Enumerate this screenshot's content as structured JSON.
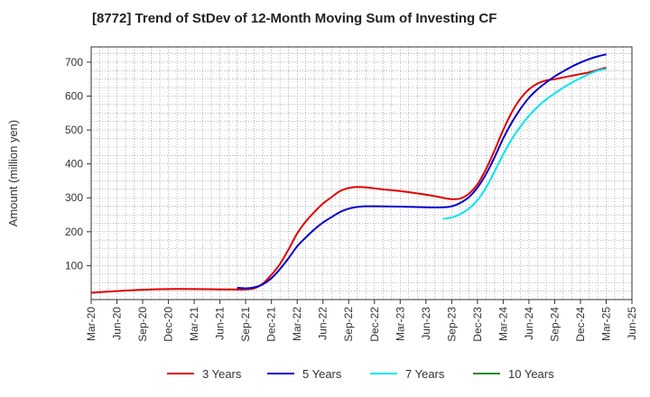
{
  "chart_data": {
    "type": "line",
    "title": "[8772]  Trend of StDev of 12-Month Moving Sum of Investing CF",
    "xlabel": "",
    "ylabel": "Amount (million yen)",
    "ylim": [
      0,
      745
    ],
    "yticks": [
      100,
      200,
      300,
      400,
      500,
      600,
      700
    ],
    "x_start": "2020-03",
    "x_end": "2025-06",
    "xticks": [
      "Mar-20",
      "Jun-20",
      "Sep-20",
      "Dec-20",
      "Mar-21",
      "Jun-21",
      "Sep-21",
      "Dec-21",
      "Mar-22",
      "Jun-22",
      "Sep-22",
      "Dec-22",
      "Mar-23",
      "Jun-23",
      "Sep-23",
      "Dec-23",
      "Mar-24",
      "Jun-24",
      "Sep-24",
      "Dec-24",
      "Mar-25",
      "Jun-25"
    ],
    "grid": true,
    "legend_position": "bottom",
    "series": [
      {
        "name": "3 Years",
        "color": "#e00000",
        "points": [
          [
            "2020-03",
            20
          ],
          [
            "2020-06",
            25
          ],
          [
            "2020-09",
            29
          ],
          [
            "2020-12",
            31
          ],
          [
            "2021-03",
            31
          ],
          [
            "2021-06",
            30
          ],
          [
            "2021-09",
            30
          ],
          [
            "2021-10",
            33
          ],
          [
            "2021-11",
            47
          ],
          [
            "2021-12",
            73
          ],
          [
            "2022-01",
            105
          ],
          [
            "2022-02",
            148
          ],
          [
            "2022-03",
            195
          ],
          [
            "2022-04",
            230
          ],
          [
            "2022-05",
            258
          ],
          [
            "2022-06",
            283
          ],
          [
            "2022-07",
            302
          ],
          [
            "2022-08",
            320
          ],
          [
            "2022-09",
            329
          ],
          [
            "2022-10",
            332
          ],
          [
            "2022-11",
            331
          ],
          [
            "2022-12",
            328
          ],
          [
            "2023-01",
            325
          ],
          [
            "2023-03",
            320
          ],
          [
            "2023-05",
            313
          ],
          [
            "2023-07",
            305
          ],
          [
            "2023-08",
            300
          ],
          [
            "2023-09",
            296
          ],
          [
            "2023-10",
            298
          ],
          [
            "2023-11",
            312
          ],
          [
            "2023-12",
            340
          ],
          [
            "2024-01",
            385
          ],
          [
            "2024-02",
            440
          ],
          [
            "2024-03",
            500
          ],
          [
            "2024-04",
            552
          ],
          [
            "2024-05",
            592
          ],
          [
            "2024-06",
            620
          ],
          [
            "2024-07",
            637
          ],
          [
            "2024-08",
            646
          ],
          [
            "2024-09",
            650
          ],
          [
            "2024-10",
            655
          ],
          [
            "2024-11",
            660
          ],
          [
            "2024-12",
            665
          ],
          [
            "2025-01",
            670
          ],
          [
            "2025-02",
            677
          ],
          [
            "2025-03",
            684
          ]
        ]
      },
      {
        "name": "5 Years",
        "color": "#0000cc",
        "points": [
          [
            "2021-08",
            35
          ],
          [
            "2021-09",
            33
          ],
          [
            "2021-10",
            36
          ],
          [
            "2021-11",
            45
          ],
          [
            "2021-12",
            63
          ],
          [
            "2022-01",
            90
          ],
          [
            "2022-02",
            122
          ],
          [
            "2022-03",
            157
          ],
          [
            "2022-04",
            183
          ],
          [
            "2022-05",
            207
          ],
          [
            "2022-06",
            227
          ],
          [
            "2022-07",
            243
          ],
          [
            "2022-08",
            258
          ],
          [
            "2022-09",
            268
          ],
          [
            "2022-10",
            273
          ],
          [
            "2022-11",
            275
          ],
          [
            "2022-12",
            275
          ],
          [
            "2023-03",
            274
          ],
          [
            "2023-06",
            272
          ],
          [
            "2023-08",
            272
          ],
          [
            "2023-09",
            275
          ],
          [
            "2023-10",
            285
          ],
          [
            "2023-11",
            302
          ],
          [
            "2023-12",
            330
          ],
          [
            "2024-01",
            370
          ],
          [
            "2024-02",
            420
          ],
          [
            "2024-03",
            475
          ],
          [
            "2024-04",
            522
          ],
          [
            "2024-05",
            562
          ],
          [
            "2024-06",
            595
          ],
          [
            "2024-07",
            620
          ],
          [
            "2024-08",
            640
          ],
          [
            "2024-09",
            658
          ],
          [
            "2024-10",
            673
          ],
          [
            "2024-11",
            687
          ],
          [
            "2024-12",
            699
          ],
          [
            "2025-01",
            709
          ],
          [
            "2025-02",
            717
          ],
          [
            "2025-03",
            723
          ]
        ]
      },
      {
        "name": "7 Years",
        "color": "#00e5ee",
        "points": [
          [
            "2023-08",
            238
          ],
          [
            "2023-09",
            242
          ],
          [
            "2023-10",
            252
          ],
          [
            "2023-11",
            268
          ],
          [
            "2023-12",
            293
          ],
          [
            "2024-01",
            330
          ],
          [
            "2024-02",
            378
          ],
          [
            "2024-03",
            428
          ],
          [
            "2024-04",
            473
          ],
          [
            "2024-05",
            510
          ],
          [
            "2024-06",
            542
          ],
          [
            "2024-07",
            568
          ],
          [
            "2024-08",
            590
          ],
          [
            "2024-09",
            608
          ],
          [
            "2024-10",
            625
          ],
          [
            "2024-11",
            640
          ],
          [
            "2024-12",
            653
          ],
          [
            "2025-01",
            665
          ],
          [
            "2025-02",
            675
          ],
          [
            "2025-03",
            680
          ]
        ]
      },
      {
        "name": "10 Years",
        "color": "#228b22",
        "points": []
      }
    ]
  }
}
